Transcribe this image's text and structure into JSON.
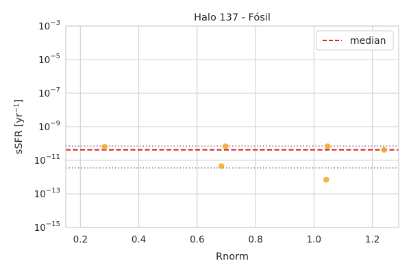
{
  "chart_data": {
    "type": "scatter",
    "title": "Halo 137 - Fósil",
    "xlabel": "Rnorm",
    "ylabel_base": "sSFR [yr",
    "ylabel_exp": "−1",
    "ylabel_close": "]",
    "xlim": [
      0.15,
      1.29
    ],
    "xticks": [
      0.2,
      0.4,
      0.6,
      0.8,
      1.0,
      1.2
    ],
    "xtick_labels": [
      "0.2",
      "0.4",
      "0.6",
      "0.8",
      "1.0",
      "1.2"
    ],
    "ylim_log10": [
      -15,
      -3
    ],
    "y_scale": "log",
    "yticks_log10": [
      -15,
      -13,
      -11,
      -9,
      -7,
      -5,
      -3
    ],
    "ytick_base": "10",
    "ytick_exps": [
      "−15",
      "−13",
      "−11",
      "−9",
      "−7",
      "−5",
      "−3"
    ],
    "points": [
      {
        "x": 0.283,
        "y": 6.3e-11
      },
      {
        "x": 0.697,
        "y": 6.8e-11
      },
      {
        "x": 0.683,
        "y": 4.5e-12
      },
      {
        "x": 1.047,
        "y": 6.8e-11
      },
      {
        "x": 1.042,
        "y": 7e-13
      },
      {
        "x": 1.24,
        "y": 4.2e-11
      }
    ],
    "median": 4.2e-11,
    "upper_dotted": 7.1e-11,
    "lower_dotted": 3.5e-12,
    "grid": true,
    "legend": {
      "position": "top-right",
      "entries": [
        {
          "label": "median",
          "style": "dashed",
          "color": "#e41a1c"
        }
      ]
    },
    "colors": {
      "points": "#f5a623",
      "median": "#e41a1c",
      "dotted": "#707070",
      "grid": "#d0d0d0",
      "spine": "#cccccc"
    }
  }
}
